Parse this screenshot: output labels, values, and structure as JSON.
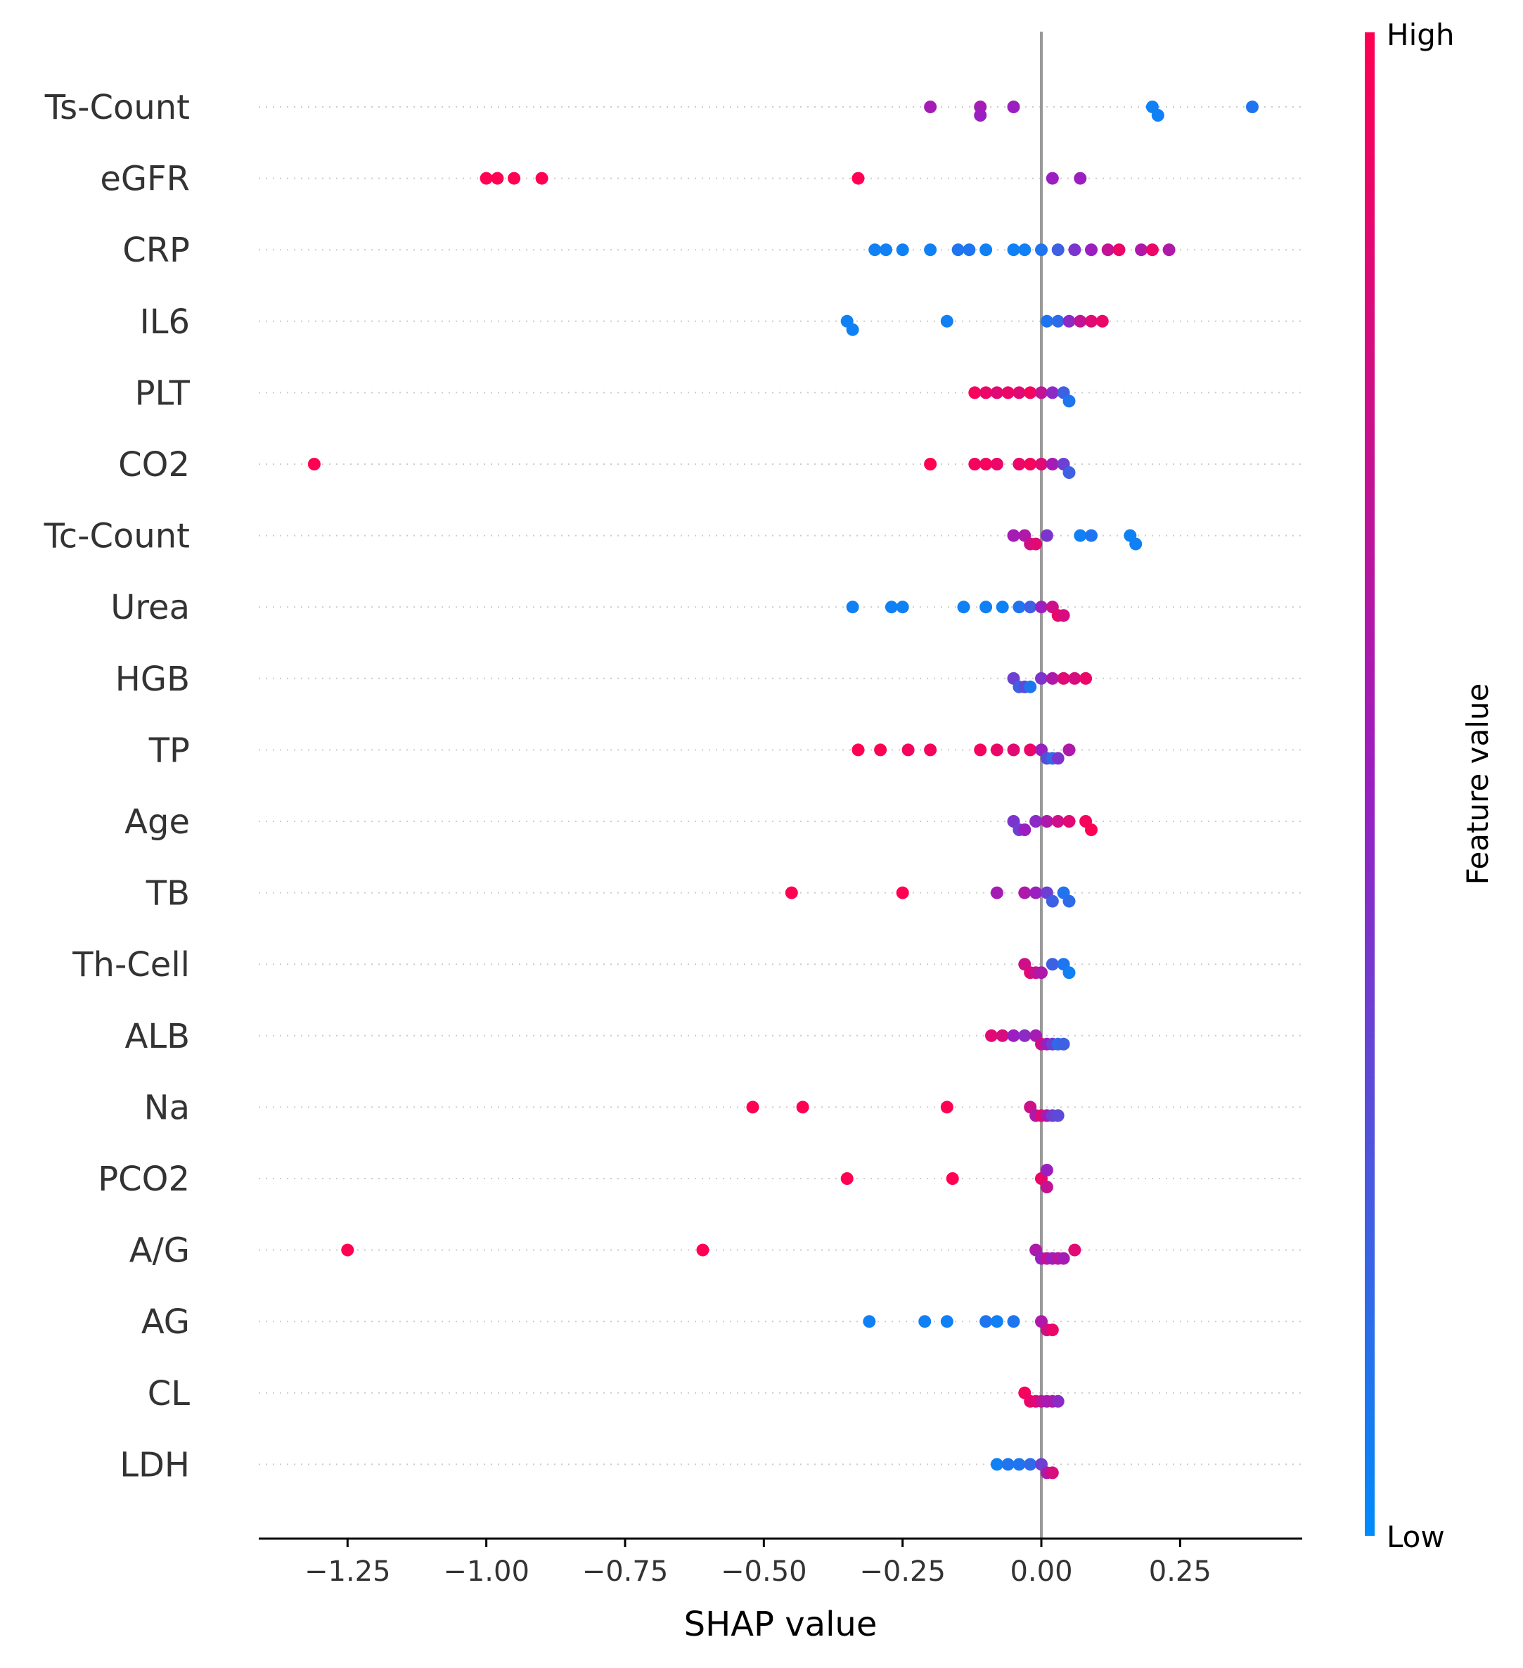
{
  "colors": {
    "low": "#008bfb",
    "mid": "#9b1fc0",
    "high": "#ff0052",
    "zero_line": "#999999",
    "gridline": "#cccccc"
  },
  "chart_data": {
    "type": "scatter",
    "subtype": "shap-beeswarm",
    "xlabel": "SHAP value",
    "xlim": [
      -1.41,
      0.47
    ],
    "xticks": [
      -1.25,
      -1.0,
      -0.75,
      -0.5,
      -0.25,
      0.0,
      0.25
    ],
    "xtick_labels": [
      "−1.25",
      "−1.00",
      "−0.75",
      "−0.50",
      "−0.25",
      "0.00",
      "0.25"
    ],
    "colorbar": {
      "label": "Feature value",
      "high": "High",
      "low": "Low"
    },
    "features": [
      {
        "name": "Ts-Count",
        "points": [
          [
            -0.2,
            0.55
          ],
          [
            -0.11,
            0.55
          ],
          [
            -0.11,
            0.5
          ],
          [
            -0.05,
            0.5
          ],
          [
            0.2,
            0.05
          ],
          [
            0.21,
            0.05
          ],
          [
            0.38,
            0.1
          ]
        ]
      },
      {
        "name": "eGFR",
        "points": [
          [
            -1.0,
            1
          ],
          [
            -0.98,
            1
          ],
          [
            -0.95,
            1
          ],
          [
            -0.9,
            1
          ],
          [
            -0.33,
            1
          ],
          [
            0.02,
            0.5
          ],
          [
            0.07,
            0.5
          ]
        ]
      },
      {
        "name": "CRP",
        "points": [
          [
            -0.3,
            0.05
          ],
          [
            -0.28,
            0.05
          ],
          [
            -0.25,
            0.05
          ],
          [
            -0.2,
            0.05
          ],
          [
            -0.15,
            0.1
          ],
          [
            -0.13,
            0.1
          ],
          [
            -0.1,
            0.05
          ],
          [
            -0.05,
            0.05
          ],
          [
            -0.03,
            0.05
          ],
          [
            0.0,
            0.1
          ],
          [
            0.03,
            0.2
          ],
          [
            0.06,
            0.4
          ],
          [
            0.09,
            0.5
          ],
          [
            0.12,
            0.7
          ],
          [
            0.14,
            0.9
          ],
          [
            0.18,
            0.6
          ],
          [
            0.2,
            0.9
          ],
          [
            0.23,
            0.6
          ]
        ]
      },
      {
        "name": "IL6",
        "points": [
          [
            -0.35,
            0.05
          ],
          [
            -0.34,
            0.05
          ],
          [
            -0.17,
            0.05
          ],
          [
            0.01,
            0.1
          ],
          [
            0.03,
            0.15
          ],
          [
            0.05,
            0.45
          ],
          [
            0.07,
            0.7
          ],
          [
            0.09,
            0.85
          ],
          [
            0.11,
            0.9
          ]
        ]
      },
      {
        "name": "PLT",
        "points": [
          [
            -0.12,
            0.95
          ],
          [
            -0.1,
            0.9
          ],
          [
            -0.08,
            0.85
          ],
          [
            -0.06,
            0.9
          ],
          [
            -0.04,
            0.85
          ],
          [
            -0.02,
            0.95
          ],
          [
            0.0,
            0.7
          ],
          [
            0.02,
            0.45
          ],
          [
            0.04,
            0.2
          ],
          [
            0.05,
            0.1
          ]
        ]
      },
      {
        "name": "CO2",
        "points": [
          [
            -1.31,
            1
          ],
          [
            -0.2,
            1
          ],
          [
            -0.12,
            0.95
          ],
          [
            -0.1,
            0.95
          ],
          [
            -0.08,
            0.9
          ],
          [
            -0.04,
            0.9
          ],
          [
            -0.02,
            0.95
          ],
          [
            0.0,
            0.85
          ],
          [
            0.02,
            0.55
          ],
          [
            0.04,
            0.35
          ],
          [
            0.05,
            0.2
          ]
        ]
      },
      {
        "name": "Tc-Count",
        "points": [
          [
            -0.05,
            0.55
          ],
          [
            -0.03,
            0.6
          ],
          [
            -0.02,
            0.75
          ],
          [
            -0.01,
            0.85
          ],
          [
            0.01,
            0.4
          ],
          [
            0.07,
            0.05
          ],
          [
            0.09,
            0.1
          ],
          [
            0.16,
            0.05
          ],
          [
            0.17,
            0.05
          ]
        ]
      },
      {
        "name": "Urea",
        "points": [
          [
            -0.34,
            0.05
          ],
          [
            -0.27,
            0.05
          ],
          [
            -0.25,
            0.05
          ],
          [
            -0.14,
            0.05
          ],
          [
            -0.1,
            0.05
          ],
          [
            -0.07,
            0.05
          ],
          [
            -0.04,
            0.1
          ],
          [
            -0.02,
            0.2
          ],
          [
            0.0,
            0.5
          ],
          [
            0.02,
            0.75
          ],
          [
            0.03,
            0.9
          ],
          [
            0.04,
            0.8
          ]
        ]
      },
      {
        "name": "HGB",
        "points": [
          [
            -0.05,
            0.35
          ],
          [
            -0.04,
            0.2
          ],
          [
            -0.03,
            0.3
          ],
          [
            -0.02,
            0.1
          ],
          [
            0.0,
            0.4
          ],
          [
            0.02,
            0.6
          ],
          [
            0.04,
            0.85
          ],
          [
            0.06,
            0.8
          ],
          [
            0.08,
            0.9
          ]
        ]
      },
      {
        "name": "TP",
        "points": [
          [
            -0.33,
            1
          ],
          [
            -0.29,
            1
          ],
          [
            -0.24,
            0.95
          ],
          [
            -0.2,
            0.95
          ],
          [
            -0.11,
            0.95
          ],
          [
            -0.08,
            0.9
          ],
          [
            -0.05,
            0.85
          ],
          [
            -0.02,
            0.9
          ],
          [
            0.0,
            0.5
          ],
          [
            0.01,
            0.3
          ],
          [
            0.02,
            0.15
          ],
          [
            0.03,
            0.4
          ],
          [
            0.05,
            0.6
          ]
        ]
      },
      {
        "name": "Age",
        "points": [
          [
            -0.05,
            0.4
          ],
          [
            -0.04,
            0.35
          ],
          [
            -0.03,
            0.5
          ],
          [
            -0.01,
            0.45
          ],
          [
            0.01,
            0.6
          ],
          [
            0.03,
            0.75
          ],
          [
            0.05,
            0.85
          ],
          [
            0.08,
            0.95
          ],
          [
            0.09,
            1
          ]
        ]
      },
      {
        "name": "TB",
        "points": [
          [
            -0.45,
            1
          ],
          [
            -0.25,
            1
          ],
          [
            -0.08,
            0.55
          ],
          [
            -0.03,
            0.6
          ],
          [
            -0.01,
            0.5
          ],
          [
            0.01,
            0.35
          ],
          [
            0.02,
            0.2
          ],
          [
            0.04,
            0.1
          ],
          [
            0.05,
            0.15
          ]
        ]
      },
      {
        "name": "Th-Cell",
        "points": [
          [
            -0.03,
            0.75
          ],
          [
            -0.02,
            0.85
          ],
          [
            -0.01,
            0.7
          ],
          [
            0.0,
            0.6
          ],
          [
            0.02,
            0.2
          ],
          [
            0.04,
            0.1
          ],
          [
            0.05,
            0.05
          ]
        ]
      },
      {
        "name": "ALB",
        "points": [
          [
            -0.09,
            0.85
          ],
          [
            -0.07,
            0.8
          ],
          [
            -0.05,
            0.5
          ],
          [
            -0.03,
            0.45
          ],
          [
            -0.01,
            0.55
          ],
          [
            0.0,
            0.75
          ],
          [
            0.01,
            0.5
          ],
          [
            0.02,
            0.35
          ],
          [
            0.03,
            0.15
          ],
          [
            0.04,
            0.2
          ]
        ]
      },
      {
        "name": "Na",
        "points": [
          [
            -0.52,
            1
          ],
          [
            -0.43,
            1
          ],
          [
            -0.17,
            1
          ],
          [
            -0.02,
            0.75
          ],
          [
            -0.01,
            0.6
          ],
          [
            0.0,
            0.85
          ],
          [
            0.01,
            0.55
          ],
          [
            0.02,
            0.35
          ],
          [
            0.03,
            0.3
          ]
        ]
      },
      {
        "name": "PCO2",
        "points": [
          [
            -0.35,
            1
          ],
          [
            -0.16,
            1
          ],
          [
            0.0,
            0.9
          ],
          [
            0.01,
            0.7
          ],
          [
            0.01,
            0.5
          ]
        ]
      },
      {
        "name": "A/G",
        "points": [
          [
            -1.25,
            1
          ],
          [
            -0.61,
            1
          ],
          [
            -0.01,
            0.6
          ],
          [
            0.0,
            0.5
          ],
          [
            0.01,
            0.7
          ],
          [
            0.02,
            0.5
          ],
          [
            0.03,
            0.65
          ],
          [
            0.04,
            0.55
          ],
          [
            0.06,
            0.85
          ]
        ]
      },
      {
        "name": "AG",
        "points": [
          [
            -0.31,
            0.05
          ],
          [
            -0.21,
            0.05
          ],
          [
            -0.17,
            0.05
          ],
          [
            -0.1,
            0.1
          ],
          [
            -0.08,
            0.05
          ],
          [
            -0.05,
            0.1
          ],
          [
            0.0,
            0.6
          ],
          [
            0.01,
            0.75
          ],
          [
            0.02,
            0.9
          ]
        ]
      },
      {
        "name": "CL",
        "points": [
          [
            -0.03,
            0.95
          ],
          [
            -0.02,
            0.9
          ],
          [
            -0.01,
            0.85
          ],
          [
            0.0,
            0.7
          ],
          [
            0.01,
            0.55
          ],
          [
            0.02,
            0.6
          ],
          [
            0.03,
            0.45
          ]
        ]
      },
      {
        "name": "LDH",
        "points": [
          [
            -0.08,
            0.05
          ],
          [
            -0.06,
            0.1
          ],
          [
            -0.04,
            0.1
          ],
          [
            -0.02,
            0.15
          ],
          [
            0.0,
            0.35
          ],
          [
            0.01,
            0.6
          ],
          [
            0.02,
            0.8
          ]
        ]
      }
    ]
  }
}
